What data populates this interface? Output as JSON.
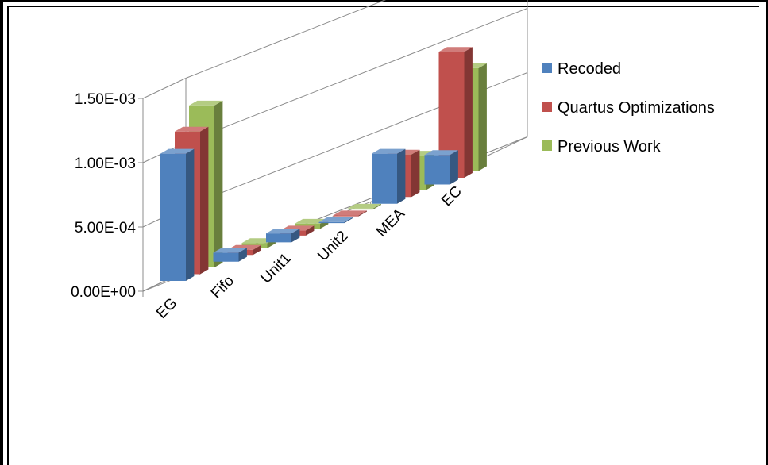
{
  "chart_data": {
    "type": "bar",
    "subtype": "3d-clustered-column",
    "categories": [
      "EG",
      "Fifo",
      "Unit1",
      "Unit2",
      "MEA",
      "EC"
    ],
    "series": [
      {
        "name": "Recoded",
        "color": "#4F81BD",
        "values": [
          0.00099,
          7e-05,
          7e-05,
          5e-06,
          0.00039,
          0.00023
        ]
      },
      {
        "name": "Quartus Optimizations",
        "color": "#C0504D",
        "values": [
          0.00111,
          4e-05,
          4e-05,
          5e-06,
          0.00033,
          0.00098
        ]
      },
      {
        "name": "Previous Work",
        "color": "#9BBB59",
        "values": [
          0.00126,
          4e-05,
          4e-05,
          5e-06,
          0.00027,
          0.0008
        ]
      }
    ],
    "yticks": [
      "0.00E+00",
      "5.00E-04",
      "1.00E-03",
      "1.50E-03"
    ],
    "ylim": [
      0,
      0.0015
    ],
    "legend_position": "top-right"
  }
}
